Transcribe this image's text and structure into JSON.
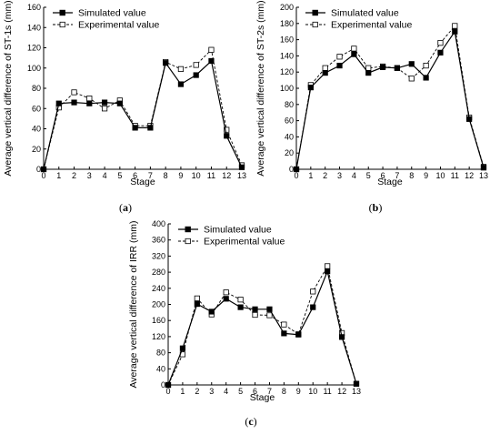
{
  "legend": {
    "simulated": "Simulated value",
    "experimental": "Experimental value"
  },
  "chart_data": [
    {
      "type": "line",
      "panel_label": "(a)",
      "xlabel": "Stage",
      "ylabel": "Average vertical difference of  ST-1s (mm)",
      "x": [
        0,
        1,
        2,
        3,
        4,
        5,
        6,
        7,
        8,
        9,
        10,
        11,
        12,
        13
      ],
      "xlim": [
        0,
        13
      ],
      "ylim": [
        0,
        160
      ],
      "yticks": [
        0,
        20,
        40,
        60,
        80,
        100,
        120,
        140,
        160
      ],
      "legend_position": "top-left",
      "series": [
        {
          "name": "Simulated value",
          "style": "solid, filled square markers",
          "values": [
            0,
            65,
            66,
            65,
            66,
            65,
            41,
            41,
            105,
            84,
            93,
            107,
            33,
            2
          ]
        },
        {
          "name": "Experimental value",
          "style": "dashed, open square markers",
          "values": [
            0,
            61,
            76,
            70,
            60,
            68,
            43,
            43,
            106,
            99,
            103,
            118,
            39,
            4
          ]
        }
      ]
    },
    {
      "type": "line",
      "panel_label": "(b)",
      "xlabel": "Stage",
      "ylabel": "Average vertical difference of  ST-2s (mm)",
      "x": [
        0,
        1,
        2,
        3,
        4,
        5,
        6,
        7,
        8,
        9,
        10,
        11,
        12,
        13
      ],
      "xlim": [
        0,
        13
      ],
      "ylim": [
        0,
        200
      ],
      "yticks": [
        0,
        20,
        40,
        60,
        80,
        100,
        120,
        140,
        160,
        180,
        200
      ],
      "legend_position": "top-left",
      "series": [
        {
          "name": "Simulated value",
          "style": "solid, filled square markers",
          "values": [
            0,
            101,
            119,
            128,
            142,
            119,
            126,
            125,
            130,
            113,
            144,
            170,
            62,
            2
          ]
        },
        {
          "name": "Experimental value",
          "style": "dashed, open square markers",
          "values": [
            0,
            104,
            125,
            139,
            149,
            125,
            127,
            125,
            112,
            128,
            156,
            177,
            64,
            3
          ]
        }
      ]
    },
    {
      "type": "line",
      "panel_label": "(c)",
      "xlabel": "Stage",
      "ylabel": "Average vertical difference of IRR (mm)",
      "x": [
        0,
        1,
        2,
        3,
        4,
        5,
        6,
        7,
        8,
        9,
        10,
        11,
        12,
        13
      ],
      "xlim": [
        0,
        13
      ],
      "ylim": [
        0,
        400
      ],
      "yticks": [
        0,
        40,
        80,
        120,
        160,
        200,
        240,
        280,
        320,
        360,
        400
      ],
      "legend_position": "top-left",
      "series": [
        {
          "name": "Simulated value",
          "style": "solid, filled square markers",
          "values": [
            0,
            91,
            201,
            182,
            214,
            193,
            188,
            188,
            128,
            125,
            193,
            282,
            119,
            3
          ]
        },
        {
          "name": "Experimental value",
          "style": "dashed, open square markers",
          "values": [
            0,
            76,
            215,
            175,
            230,
            212,
            174,
            173,
            150,
            126,
            232,
            295,
            129,
            3
          ]
        }
      ]
    }
  ]
}
